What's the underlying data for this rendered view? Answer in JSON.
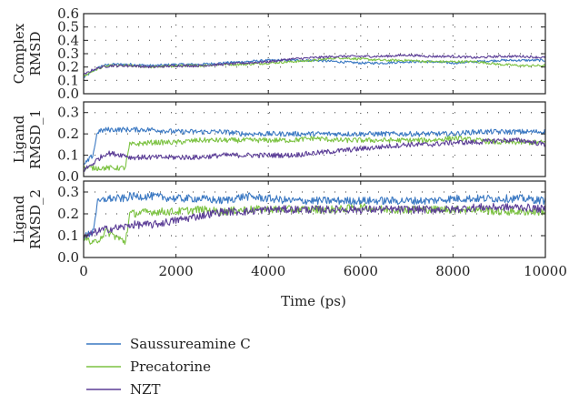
{
  "chart_data": {
    "type": "line",
    "xlabel": "Time (ps)",
    "xlim": [
      0,
      10000
    ],
    "xticks": [
      "0",
      "2000",
      "4000",
      "6000",
      "8000",
      "10000"
    ],
    "legend": {
      "placement": "bottom-left",
      "entries": [
        "Saussureamine C",
        "Precatorine",
        "NZT"
      ]
    },
    "colors": {
      "Saussureamine C": "#3a78c2",
      "Precatorine": "#7cc242",
      "NZT": "#5b3d96"
    },
    "grid": "dotted",
    "panels": [
      {
        "ylabel_line1": "Complex",
        "ylabel_line2": "RMSD",
        "ylim": [
          0,
          0.6
        ],
        "yticks": [
          "0.0",
          "0.1",
          "0.2",
          "0.3",
          "0.4",
          "0.5",
          "0.6"
        ],
        "x": [
          0,
          200,
          400,
          600,
          1000,
          1500,
          2000,
          2500,
          3000,
          3500,
          4000,
          4500,
          5000,
          5500,
          6000,
          6500,
          7000,
          7500,
          8000,
          8500,
          9000,
          9500,
          10000
        ],
        "series": [
          {
            "name": "Saussureamine C",
            "values": [
              0.12,
              0.17,
              0.21,
              0.22,
              0.22,
              0.21,
              0.22,
              0.22,
              0.23,
              0.24,
              0.25,
              0.25,
              0.25,
              0.24,
              0.23,
              0.23,
              0.24,
              0.24,
              0.23,
              0.24,
              0.25,
              0.25,
              0.25
            ]
          },
          {
            "name": "Precatorine",
            "values": [
              0.13,
              0.17,
              0.2,
              0.21,
              0.21,
              0.2,
              0.21,
              0.21,
              0.22,
              0.22,
              0.23,
              0.24,
              0.25,
              0.27,
              0.26,
              0.25,
              0.25,
              0.24,
              0.24,
              0.24,
              0.22,
              0.21,
              0.21
            ]
          },
          {
            "name": "NZT",
            "values": [
              0.14,
              0.18,
              0.2,
              0.21,
              0.21,
              0.2,
              0.21,
              0.21,
              0.22,
              0.23,
              0.24,
              0.26,
              0.27,
              0.28,
              0.28,
              0.28,
              0.29,
              0.28,
              0.28,
              0.27,
              0.28,
              0.28,
              0.27
            ]
          }
        ]
      },
      {
        "ylabel_line1": "Ligand",
        "ylabel_line2": "RMSD_1",
        "ylim": [
          0,
          0.35
        ],
        "yticks": [
          "0.0",
          "0.1",
          "0.2",
          "0.3"
        ],
        "x": [
          0,
          200,
          300,
          500,
          900,
          1000,
          1500,
          2000,
          2500,
          3000,
          3500,
          4000,
          4500,
          5000,
          5500,
          6000,
          6500,
          7000,
          7500,
          8000,
          8500,
          9000,
          9500,
          10000
        ],
        "series": [
          {
            "name": "Saussureamine C",
            "values": [
              0.05,
              0.1,
              0.21,
              0.22,
              0.22,
              0.22,
              0.22,
              0.21,
              0.21,
              0.21,
              0.2,
              0.2,
              0.2,
              0.2,
              0.2,
              0.2,
              0.2,
              0.2,
              0.2,
              0.2,
              0.21,
              0.21,
              0.21,
              0.21
            ]
          },
          {
            "name": "Precatorine",
            "values": [
              0.04,
              0.04,
              0.04,
              0.04,
              0.04,
              0.15,
              0.16,
              0.16,
              0.17,
              0.17,
              0.17,
              0.17,
              0.17,
              0.18,
              0.17,
              0.17,
              0.17,
              0.17,
              0.17,
              0.18,
              0.17,
              0.16,
              0.16,
              0.16
            ]
          },
          {
            "name": "NZT",
            "values": [
              0.03,
              0.06,
              0.08,
              0.11,
              0.1,
              0.09,
              0.09,
              0.09,
              0.09,
              0.1,
              0.1,
              0.1,
              0.1,
              0.11,
              0.12,
              0.13,
              0.14,
              0.15,
              0.15,
              0.16,
              0.16,
              0.17,
              0.17,
              0.15
            ]
          }
        ]
      },
      {
        "ylabel_line1": "Ligand",
        "ylabel_line2": "RMSD_2",
        "ylim": [
          0,
          0.35
        ],
        "yticks": [
          "0.0",
          "0.1",
          "0.2",
          "0.3"
        ],
        "x": [
          0,
          200,
          300,
          500,
          900,
          1000,
          1500,
          2000,
          2500,
          3000,
          3500,
          4000,
          4500,
          5000,
          5500,
          6000,
          6500,
          7000,
          7500,
          8000,
          8500,
          9000,
          9500,
          10000
        ],
        "series": [
          {
            "name": "Saussureamine C",
            "values": [
              0.09,
              0.12,
              0.25,
              0.27,
              0.27,
              0.28,
              0.28,
              0.27,
              0.27,
              0.26,
              0.28,
              0.27,
              0.26,
              0.26,
              0.26,
              0.26,
              0.26,
              0.26,
              0.26,
              0.27,
              0.27,
              0.27,
              0.27,
              0.26
            ]
          },
          {
            "name": "Precatorine",
            "values": [
              0.1,
              0.06,
              0.08,
              0.12,
              0.07,
              0.2,
              0.21,
              0.21,
              0.22,
              0.21,
              0.22,
              0.22,
              0.22,
              0.22,
              0.22,
              0.23,
              0.22,
              0.22,
              0.22,
              0.22,
              0.22,
              0.21,
              0.21,
              0.21
            ]
          },
          {
            "name": "NZT",
            "values": [
              0.09,
              0.11,
              0.12,
              0.13,
              0.14,
              0.15,
              0.15,
              0.17,
              0.19,
              0.21,
              0.21,
              0.22,
              0.22,
              0.22,
              0.22,
              0.22,
              0.22,
              0.22,
              0.22,
              0.22,
              0.23,
              0.23,
              0.23,
              0.22
            ]
          }
        ]
      }
    ]
  }
}
